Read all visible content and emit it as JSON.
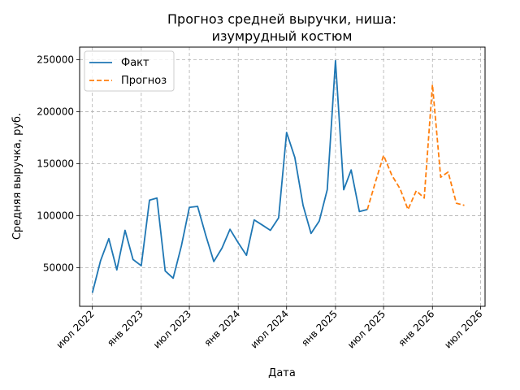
{
  "chart_data": {
    "type": "line",
    "title_lines": [
      "Прогноз средней выручки, ниша:",
      "изумрудный костюм"
    ],
    "xlabel": "Дата",
    "ylabel": "Средняя выручка, руб.",
    "grid": true,
    "legend_position": "top-left",
    "ylim": [
      13000,
      262000
    ],
    "xlim": [
      "2022-05-14",
      "2026-07-18"
    ],
    "x_ticks": [
      {
        "date": "2022-07-01",
        "label": "июл 2022"
      },
      {
        "date": "2023-01-01",
        "label": "янв 2023"
      },
      {
        "date": "2023-07-01",
        "label": "июл 2023"
      },
      {
        "date": "2024-01-01",
        "label": "янв 2024"
      },
      {
        "date": "2024-07-01",
        "label": "июл 2024"
      },
      {
        "date": "2025-01-01",
        "label": "янв 2025"
      },
      {
        "date": "2025-07-01",
        "label": "июл 2025"
      },
      {
        "date": "2026-01-01",
        "label": "янв 2026"
      },
      {
        "date": "2026-07-01",
        "label": "июл 2026"
      }
    ],
    "y_ticks": [
      50000,
      100000,
      150000,
      200000,
      250000
    ],
    "series": [
      {
        "name": "Факт",
        "color": "#1f77b4",
        "style": "solid",
        "points": [
          {
            "x": "2022-07-01",
            "y": 26000
          },
          {
            "x": "2022-08-01",
            "y": 57000
          },
          {
            "x": "2022-09-01",
            "y": 78000
          },
          {
            "x": "2022-10-01",
            "y": 48000
          },
          {
            "x": "2022-11-01",
            "y": 86000
          },
          {
            "x": "2022-12-01",
            "y": 58000
          },
          {
            "x": "2023-01-01",
            "y": 52000
          },
          {
            "x": "2023-02-01",
            "y": 115000
          },
          {
            "x": "2023-03-01",
            "y": 117000
          },
          {
            "x": "2023-04-01",
            "y": 47000
          },
          {
            "x": "2023-05-01",
            "y": 40000
          },
          {
            "x": "2023-06-01",
            "y": 71000
          },
          {
            "x": "2023-07-01",
            "y": 108000
          },
          {
            "x": "2023-08-01",
            "y": 109000
          },
          {
            "x": "2023-09-01",
            "y": 81000
          },
          {
            "x": "2023-10-01",
            "y": 56000
          },
          {
            "x": "2023-11-01",
            "y": 69000
          },
          {
            "x": "2023-12-01",
            "y": 87000
          },
          {
            "x": "2024-01-01",
            "y": 74000
          },
          {
            "x": "2024-02-01",
            "y": 62000
          },
          {
            "x": "2024-03-01",
            "y": 96000
          },
          {
            "x": "2024-04-01",
            "y": 91000
          },
          {
            "x": "2024-05-01",
            "y": 86000
          },
          {
            "x": "2024-06-01",
            "y": 98000
          },
          {
            "x": "2024-07-01",
            "y": 180000
          },
          {
            "x": "2024-08-01",
            "y": 156000
          },
          {
            "x": "2024-09-01",
            "y": 110000
          },
          {
            "x": "2024-10-01",
            "y": 83000
          },
          {
            "x": "2024-11-01",
            "y": 95000
          },
          {
            "x": "2024-12-01",
            "y": 125000
          },
          {
            "x": "2025-01-01",
            "y": 249000
          },
          {
            "x": "2025-02-01",
            "y": 125000
          },
          {
            "x": "2025-03-01",
            "y": 144000
          },
          {
            "x": "2025-04-01",
            "y": 104000
          },
          {
            "x": "2025-05-01",
            "y": 106000
          }
        ]
      },
      {
        "name": "Прогноз",
        "color": "#ff7f0e",
        "style": "dashed",
        "points": [
          {
            "x": "2025-05-01",
            "y": 106000
          },
          {
            "x": "2025-06-01",
            "y": 133000
          },
          {
            "x": "2025-07-01",
            "y": 158000
          },
          {
            "x": "2025-08-01",
            "y": 139000
          },
          {
            "x": "2025-09-01",
            "y": 126000
          },
          {
            "x": "2025-10-01",
            "y": 106000
          },
          {
            "x": "2025-11-01",
            "y": 124000
          },
          {
            "x": "2025-12-01",
            "y": 117000
          },
          {
            "x": "2026-01-01",
            "y": 226000
          },
          {
            "x": "2026-02-01",
            "y": 137000
          },
          {
            "x": "2026-03-01",
            "y": 142000
          },
          {
            "x": "2026-04-01",
            "y": 112000
          },
          {
            "x": "2026-05-01",
            "y": 110000
          }
        ]
      }
    ]
  }
}
